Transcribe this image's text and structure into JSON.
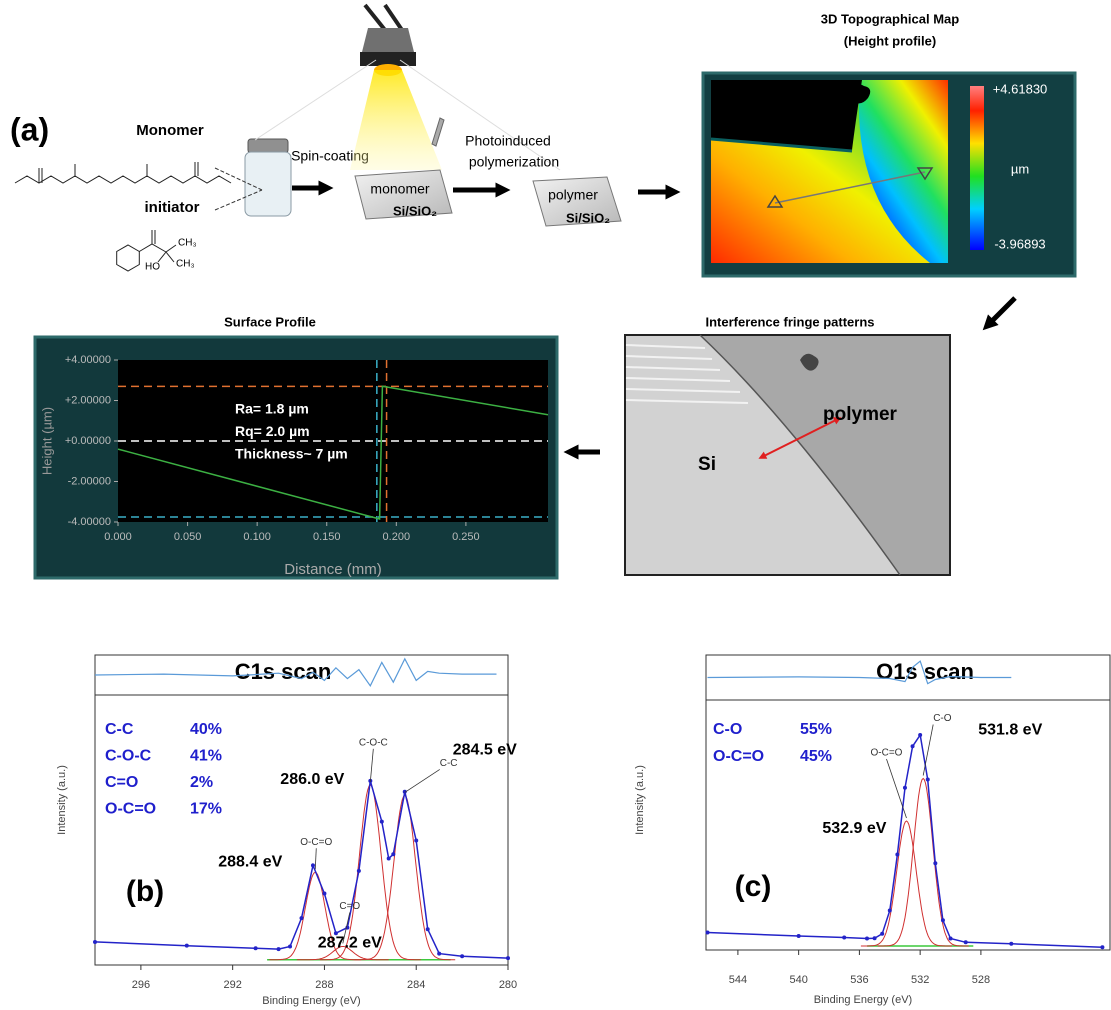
{
  "panel_a": {
    "label": "(a)",
    "monomer": "Monomer",
    "initiator": "initiator",
    "initiator_groups": [
      "CH₃",
      "HO",
      "CH₃"
    ],
    "spin_coating": "Spin-coating",
    "monomer_chip": "monomer",
    "substrate": "Si/SiO₂",
    "photo_line1": "Photoinduced",
    "photo_line2": "polymerization",
    "polymer_chip": "polymer",
    "substrate_2": "Si/SiO₂"
  },
  "topography": {
    "title": "3D Topographical Map",
    "subtitle": "(Height profile)",
    "colorbar_max": "+4.61830",
    "colorbar_unit": "µm",
    "colorbar_min": "-3.96893"
  },
  "fringes": {
    "title": "Interference fringe patterns",
    "polymer": "polymer",
    "si": "Si"
  },
  "chart_data": [
    {
      "type": "line",
      "title": "Surface Profile",
      "xlabel": "Distance (mm)",
      "ylabel": "Height (µm)",
      "xlim": [
        0,
        0.309
      ],
      "ylim": [
        -4,
        4
      ],
      "xticks": [
        {
          "value": 0,
          "label": "0.000"
        },
        {
          "value": 0.05,
          "label": "0.050"
        },
        {
          "value": 0.1,
          "label": "0.100"
        },
        {
          "value": 0.15,
          "label": "0.150"
        },
        {
          "value": 0.2,
          "label": "0.200"
        },
        {
          "value": 0.25,
          "label": "0.250"
        }
      ],
      "yticks": [
        {
          "value": -4,
          "label": "-4.00000"
        },
        {
          "value": -2,
          "label": "-2.00000"
        },
        {
          "value": 0,
          "label": "+0.00000"
        },
        {
          "value": 2,
          "label": "+2.00000"
        },
        {
          "value": 4,
          "label": "+4.00000"
        }
      ],
      "series": [
        {
          "color": "#3cb043",
          "x": [
            0,
            0.188,
            0.19,
            0.309
          ],
          "values": [
            -0.4,
            -3.85,
            2.7,
            1.3
          ]
        }
      ],
      "hlines": [
        {
          "value": 2.7,
          "color": "#e07030"
        },
        {
          "value": 0,
          "color": "#ffffff"
        },
        {
          "value": -3.75,
          "color": "#3ab0c8"
        }
      ],
      "vlines": [
        {
          "value": 0.186,
          "color": "#3ab0c8"
        },
        {
          "value": 0.193,
          "color": "#e07030"
        }
      ],
      "annotations": [
        "Ra= 1.8 µm",
        "Rq= 2.0 µm",
        "Thickness~ 7 µm"
      ]
    },
    {
      "type": "xps",
      "title": "C1s scan",
      "panel_label": "(b)",
      "xlabel": "Binding Energy (eV)",
      "ylabel": "Intensity (a.u.)",
      "xlim": [
        298,
        280
      ],
      "ylim": [
        0,
        1
      ],
      "xticks": [
        296,
        292,
        288,
        284,
        280
      ],
      "composition": {
        "text_color": "#1f1fcc",
        "names": [
          "C-C",
          "C-O-C",
          "C=O",
          "O-C=O"
        ],
        "values": [
          40,
          41,
          2,
          17
        ],
        "value_labels": [
          "40%",
          "41%",
          "2%",
          "17%"
        ]
      },
      "peaks": [
        {
          "label": "C-C",
          "center": 284.5,
          "center_label": "284.5 eV",
          "height": 0.62,
          "fwhm": 1.1
        },
        {
          "label": "C-O-C",
          "center": 286.0,
          "center_label": "286.0 eV",
          "height": 0.66,
          "fwhm": 1.1
        },
        {
          "label": "C=O",
          "center": 287.2,
          "center_label": "287.2 eV",
          "height": 0.05,
          "fwhm": 1.0
        },
        {
          "label": "O-C=O",
          "center": 288.4,
          "center_label": "288.4 eV",
          "height": 0.33,
          "fwhm": 1.0
        }
      ],
      "peak_color": "#d03030",
      "fit": {
        "color": "#2323c8",
        "x": [
          298,
          294,
          291,
          290,
          289.5,
          289,
          288.5,
          288,
          287.5,
          287,
          286.5,
          286,
          285.5,
          285.2,
          285,
          284.5,
          284,
          283.5,
          283,
          282,
          280
        ],
        "values": [
          0.087,
          0.073,
          0.063,
          0.06,
          0.07,
          0.177,
          0.376,
          0.27,
          0.12,
          0.141,
          0.355,
          0.695,
          0.541,
          0.402,
          0.418,
          0.654,
          0.47,
          0.135,
          0.043,
          0.033,
          0.026
        ]
      },
      "background": {
        "color": "#3cc83c",
        "x": [
          290.5,
          282.5
        ],
        "values": [
          0.02,
          0.02
        ]
      },
      "residual": {
        "color": "#5a9ad8",
        "ylim": [
          -1,
          1
        ],
        "x": [
          298,
          295,
          292,
          290,
          289,
          288.5,
          288,
          287.5,
          287,
          286.5,
          286,
          285.5,
          285,
          284.5,
          284,
          283.5,
          283,
          282,
          280.5
        ],
        "values": [
          0,
          0.05,
          -0.05,
          0.1,
          -0.2,
          0.15,
          -0.3,
          0.4,
          -0.2,
          0.3,
          -0.6,
          0.7,
          -0.4,
          0.9,
          -0.3,
          0.2,
          0.1,
          0.05,
          0.05
        ]
      }
    },
    {
      "type": "xps",
      "title": "O1s scan",
      "panel_label": "(c)",
      "xlabel": "Binding Energy (eV)",
      "ylabel": "Intensity (a.u.)",
      "xlim": [
        546.1,
        519.5
      ],
      "ylim": [
        0,
        1
      ],
      "xticks": [
        544,
        540,
        536,
        532,
        528
      ],
      "composition": {
        "text_color": "#1f1fcc",
        "names": [
          "C-O",
          "O-C=O"
        ],
        "values": [
          55,
          45
        ],
        "value_labels": [
          "55%",
          "45%"
        ]
      },
      "peaks": [
        {
          "label": "C-O",
          "center": 531.8,
          "center_label": "531.8 eV",
          "height": 0.67,
          "fwhm": 1.5
        },
        {
          "label": "O-C=O",
          "center": 532.9,
          "center_label": "532.9 eV",
          "height": 0.5,
          "fwhm": 1.5
        }
      ],
      "peak_color": "#d03030",
      "fit": {
        "color": "#2323c8",
        "x": [
          546,
          540,
          537,
          535.5,
          535,
          534.5,
          534,
          533.5,
          533,
          532.5,
          532,
          531.5,
          531,
          530.5,
          530,
          529,
          526,
          520
        ],
        "values": [
          0.07,
          0.056,
          0.05,
          0.046,
          0.047,
          0.065,
          0.158,
          0.382,
          0.649,
          0.815,
          0.86,
          0.682,
          0.347,
          0.119,
          0.046,
          0.031,
          0.025,
          0.011
        ]
      },
      "background": {
        "color": "#3cc83c",
        "x": [
          535.5,
          528.5
        ],
        "values": [
          0.016,
          0.016
        ]
      },
      "residual": {
        "color": "#5a9ad8",
        "ylim": [
          -1,
          1
        ],
        "x": [
          546,
          540,
          536,
          534,
          533,
          532.5,
          532,
          531.5,
          531,
          530,
          528,
          526
        ],
        "values": [
          0,
          0.03,
          0,
          -0.05,
          -0.2,
          0.5,
          0.8,
          -0.3,
          -0.1,
          0.05,
          0,
          0
        ]
      }
    }
  ]
}
